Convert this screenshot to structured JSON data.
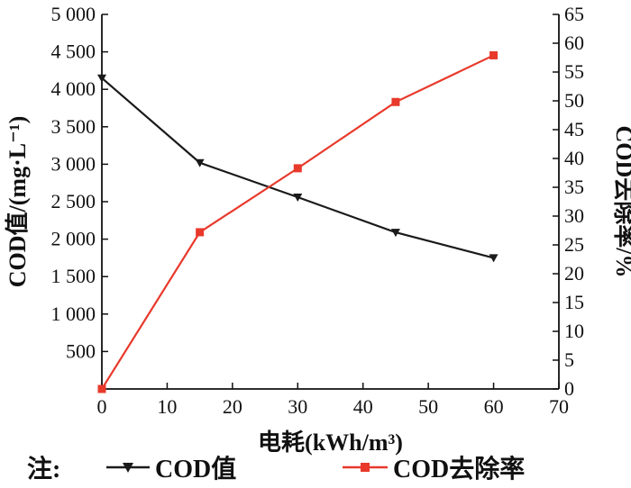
{
  "chart_data": {
    "type": "line",
    "x": [
      0,
      15,
      30,
      45,
      60
    ],
    "xlabel": "电耗(kWh/m³)",
    "xlim": [
      0,
      70
    ],
    "xticks": [
      0,
      10,
      20,
      30,
      40,
      50,
      60,
      70
    ],
    "ylabel_left": "COD值/(mg·L⁻¹)",
    "ylim_left": [
      0,
      5000
    ],
    "yticks_left": [
      "500",
      "1 000",
      "1 500",
      "2 000",
      "2 500",
      "3 000",
      "3 500",
      "4 000",
      "4 500",
      "5 000"
    ],
    "ylabel_right": "COD去除率/%",
    "ylim_right": [
      0,
      65
    ],
    "yticks_right": [
      0,
      5,
      10,
      15,
      20,
      25,
      30,
      35,
      40,
      45,
      50,
      55,
      60,
      65
    ],
    "legend_prefix": "注:",
    "series": [
      {
        "name": "COD值",
        "axis": "left",
        "color": "#1a1a1a",
        "marker": "triangle-down",
        "values": [
          4150,
          3020,
          2560,
          2090,
          1750
        ]
      },
      {
        "name": "COD去除率",
        "axis": "right",
        "color": "#e8392b",
        "marker": "square",
        "values": [
          0,
          27.2,
          38.3,
          49.8,
          57.9
        ]
      }
    ],
    "grid": false,
    "legend_position": "bottom"
  }
}
